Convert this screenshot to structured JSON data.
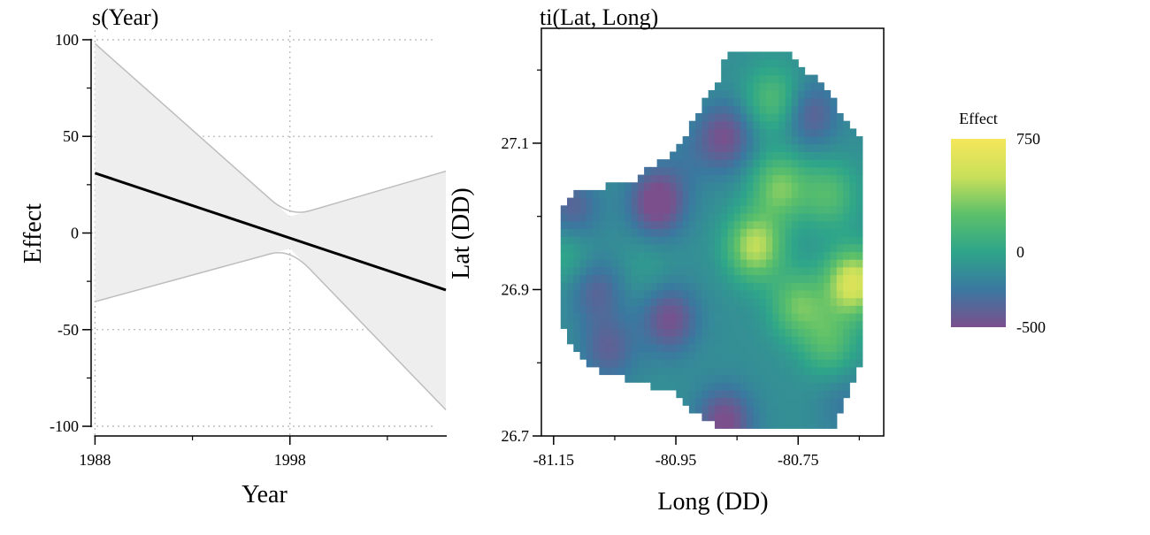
{
  "chart_data": [
    {
      "type": "line",
      "title": "s(Year)",
      "xlabel": "Year",
      "ylabel": "Effect",
      "xlim": [
        1987.8,
        2005.5
      ],
      "ylim": [
        -105,
        105
      ],
      "grid": true,
      "x_ticks": [
        1988,
        1998
      ],
      "x_tick_labels": [
        "1988",
        "1998"
      ],
      "x_minor_ticks": [
        1993,
        2003
      ],
      "y_ticks": [
        100,
        50,
        0,
        -50,
        -100
      ],
      "y_tick_labels": [
        "100",
        "50",
        "0",
        "-50",
        "-100"
      ],
      "series": [
        {
          "x": [
            1988,
            2006
          ],
          "y": [
            31,
            -29.5
          ]
        }
      ],
      "confidence_band": {
        "x": [
          1988,
          1998,
          2006
        ],
        "upper": [
          98,
          8.5,
          32
        ],
        "lower": [
          -35.5,
          -8,
          -91.5
        ]
      },
      "colors": {
        "line": "#000000",
        "band_fill": "#eeeeee",
        "band_edge": "#bdbdbd",
        "grid": "#bbbbbb"
      }
    },
    {
      "type": "heatmap",
      "title": "ti(Lat, Long)",
      "xlabel": "Long (DD)",
      "ylabel": "Lat (DD)",
      "xlim": [
        -81.17,
        -80.61
      ],
      "ylim": [
        26.7,
        27.257
      ],
      "x_ticks": [
        -81.15,
        -80.95,
        -80.75
      ],
      "x_tick_labels": [
        "-81.15",
        "-80.95",
        "-80.75"
      ],
      "x_minor_ticks": [
        -81.05,
        -80.85,
        -80.65
      ],
      "y_ticks": [
        26.7,
        26.9,
        27.1
      ],
      "y_tick_labels": [
        "26.7",
        "26.9",
        "27.1"
      ],
      "grid": false,
      "legend": {
        "title": "Effect",
        "placement": "right",
        "range": [
          -500,
          750
        ],
        "ticks": [
          750,
          0,
          -500
        ],
        "tick_labels": [
          "750",
          "0",
          "-500"
        ]
      },
      "colormap": [
        "#7b4f8c",
        "#3a78a0",
        "#2ea58a",
        "#5cc06a",
        "#c9e05a",
        "#f5e65a"
      ],
      "blobs": [
        {
          "lon": -80.66,
          "lat": 26.91,
          "effect": 700
        },
        {
          "lon": -80.82,
          "lat": 26.96,
          "effect": 580
        },
        {
          "lon": -80.78,
          "lat": 27.04,
          "effect": 420
        },
        {
          "lon": -80.75,
          "lat": 26.88,
          "effect": 380
        },
        {
          "lon": -80.79,
          "lat": 27.16,
          "effect": 300
        },
        {
          "lon": -80.7,
          "lat": 27.03,
          "effect": 300
        },
        {
          "lon": -80.7,
          "lat": 26.83,
          "effect": 300
        },
        {
          "lon": -80.98,
          "lat": 27.02,
          "effect": -480
        },
        {
          "lon": -80.87,
          "lat": 27.11,
          "effect": -380
        },
        {
          "lon": -80.96,
          "lat": 26.86,
          "effect": -380
        },
        {
          "lon": -80.87,
          "lat": 26.72,
          "effect": -420
        },
        {
          "lon": -81.08,
          "lat": 26.9,
          "effect": -260
        },
        {
          "lon": -81.12,
          "lat": 27.01,
          "effect": -280
        },
        {
          "lon": -81.06,
          "lat": 26.82,
          "effect": -280
        },
        {
          "lon": -80.73,
          "lat": 27.14,
          "effect": -300
        },
        {
          "lon": -80.67,
          "lat": 26.74,
          "effect": -150
        },
        {
          "lon": -81.13,
          "lat": 26.95,
          "effect": 150
        },
        {
          "lon": -81.0,
          "lat": 26.93,
          "effect": 60
        },
        {
          "lon": -80.93,
          "lat": 27.08,
          "effect": -100
        }
      ],
      "baseline_effect": -120,
      "region_outline": [
        [
          -80.87,
          27.22
        ],
        [
          -80.76,
          27.22
        ],
        [
          -80.7,
          27.17
        ],
        [
          -80.67,
          27.13
        ],
        [
          -80.64,
          27.1
        ],
        [
          -80.64,
          26.96
        ],
        [
          -80.64,
          26.82
        ],
        [
          -80.66,
          26.77
        ],
        [
          -80.68,
          26.74
        ],
        [
          -80.69,
          26.715
        ],
        [
          -80.8,
          26.715
        ],
        [
          -80.88,
          26.715
        ],
        [
          -80.92,
          26.73
        ],
        [
          -80.95,
          26.76
        ],
        [
          -81.0,
          26.77
        ],
        [
          -81.08,
          26.79
        ],
        [
          -81.12,
          26.82
        ],
        [
          -81.14,
          26.86
        ],
        [
          -81.14,
          26.91
        ],
        [
          -81.14,
          26.97
        ],
        [
          -81.14,
          27.01
        ],
        [
          -81.12,
          27.03
        ],
        [
          -81.07,
          27.04
        ],
        [
          -81.02,
          27.05
        ],
        [
          -80.99,
          27.07
        ],
        [
          -80.95,
          27.09
        ],
        [
          -80.93,
          27.12
        ],
        [
          -80.9,
          27.16
        ],
        [
          -80.88,
          27.19
        ]
      ]
    }
  ]
}
